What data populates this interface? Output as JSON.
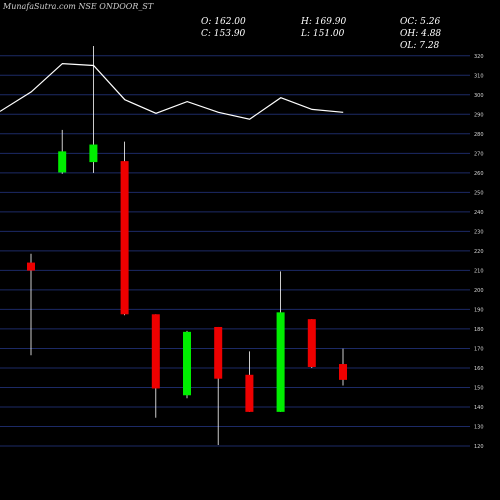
{
  "header": {
    "watermark": "MunafaSutra.com NSE ONDOOR_ST",
    "ohlc": {
      "open": "O: 162.00",
      "high": "H: 169.90",
      "oc": "OC: 5.26",
      "close": "C: 153.90",
      "low": "L: 151.00",
      "oh": "OH: 4.88",
      "ol": "OL: 7.28"
    }
  },
  "chart_data": {
    "type": "candlestick",
    "title": "",
    "xlabel": "",
    "ylabel": "",
    "ylim": [
      120,
      325
    ],
    "yticks": [
      120,
      130,
      140,
      150,
      160,
      170,
      180,
      190,
      200,
      210,
      220,
      230,
      240,
      250,
      260,
      270,
      280,
      290,
      300,
      310,
      320
    ],
    "grid": true,
    "colors": {
      "up": "#00ee00",
      "down": "#ee0000",
      "grid": "#1c2a66",
      "line": "#ffffff"
    },
    "candles": [
      {
        "open": 214.0,
        "high": 218.5,
        "low": 166.5,
        "close": 209.9
      },
      {
        "open": 260.2,
        "high": 282.0,
        "low": 259.5,
        "close": 271.0
      },
      {
        "open": 265.5,
        "high": 325.0,
        "low": 260.0,
        "close": 274.5
      },
      {
        "open": 266.0,
        "high": 276.0,
        "low": 187.0,
        "close": 187.5
      },
      {
        "open": 187.5,
        "high": 187.5,
        "low": 134.5,
        "close": 149.5
      },
      {
        "open": 146.0,
        "high": 179.0,
        "low": 144.5,
        "close": 178.5
      },
      {
        "open": 181.0,
        "high": 181.0,
        "low": 120.5,
        "close": 154.5
      },
      {
        "open": 156.5,
        "high": 168.5,
        "low": 137.5,
        "close": 137.5
      },
      {
        "open": 137.5,
        "high": 209.5,
        "low": 137.5,
        "close": 188.5
      },
      {
        "open": 185.0,
        "high": 185.0,
        "low": 160.0,
        "close": 160.5
      },
      {
        "open": 162.0,
        "high": 169.9,
        "low": 151.0,
        "close": 153.9
      }
    ],
    "line": [
      291.5,
      301.5,
      316.0,
      315.0,
      297.5,
      290.5,
      296.5,
      291.0,
      287.5,
      298.5,
      292.5,
      291.0
    ]
  }
}
